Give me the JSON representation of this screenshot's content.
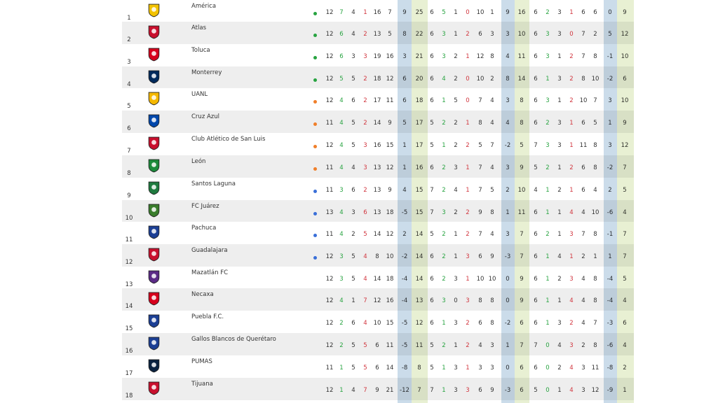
{
  "colors": {
    "dot_green": "#27a340",
    "dot_orange": "#f07f2a",
    "dot_blue": "#3a6fd8",
    "win": "#27a340",
    "loss": "#d1343d"
  },
  "rows": [
    {
      "pos": "1",
      "team": "América",
      "logo_color": "#f2c200",
      "dot": "green",
      "v": [
        "12",
        "7",
        "4",
        "1",
        "16",
        "7",
        "9",
        "25",
        "6",
        "5",
        "1",
        "0",
        "10",
        "1",
        "9",
        "16",
        "6",
        "2",
        "3",
        "1",
        "6",
        "6",
        "0",
        "9"
      ]
    },
    {
      "pos": "2",
      "team": "Atlas",
      "logo_color": "#c8102e",
      "dot": "green",
      "v": [
        "12",
        "6",
        "4",
        "2",
        "13",
        "5",
        "8",
        "22",
        "6",
        "3",
        "1",
        "2",
        "6",
        "3",
        "3",
        "10",
        "6",
        "3",
        "3",
        "0",
        "7",
        "2",
        "5",
        "12"
      ]
    },
    {
      "pos": "3",
      "team": "Toluca",
      "logo_color": "#d6001c",
      "dot": "green",
      "v": [
        "12",
        "6",
        "3",
        "3",
        "19",
        "16",
        "3",
        "21",
        "6",
        "3",
        "2",
        "1",
        "12",
        "8",
        "4",
        "11",
        "6",
        "3",
        "1",
        "2",
        "7",
        "8",
        "-1",
        "10"
      ]
    },
    {
      "pos": "4",
      "team": "Monterrey",
      "logo_color": "#002a5c",
      "dot": "green",
      "v": [
        "12",
        "5",
        "5",
        "2",
        "18",
        "12",
        "6",
        "20",
        "6",
        "4",
        "2",
        "0",
        "10",
        "2",
        "8",
        "14",
        "6",
        "1",
        "3",
        "2",
        "8",
        "10",
        "-2",
        "6"
      ]
    },
    {
      "pos": "5",
      "team": "UANL",
      "logo_color": "#f5b800",
      "dot": "orange",
      "v": [
        "12",
        "4",
        "6",
        "2",
        "17",
        "11",
        "6",
        "18",
        "6",
        "1",
        "5",
        "0",
        "7",
        "4",
        "3",
        "8",
        "6",
        "3",
        "1",
        "2",
        "10",
        "7",
        "3",
        "10"
      ]
    },
    {
      "pos": "6",
      "team": "Cruz Azul",
      "logo_color": "#0047ab",
      "dot": "orange",
      "v": [
        "11",
        "4",
        "5",
        "2",
        "14",
        "9",
        "5",
        "17",
        "5",
        "2",
        "2",
        "1",
        "8",
        "4",
        "4",
        "8",
        "6",
        "2",
        "3",
        "1",
        "6",
        "5",
        "1",
        "9"
      ]
    },
    {
      "pos": "7",
      "team": "Club Atlético de San Luis",
      "logo_color": "#c8102e",
      "dot": "orange",
      "v": [
        "12",
        "4",
        "5",
        "3",
        "16",
        "15",
        "1",
        "17",
        "5",
        "1",
        "2",
        "2",
        "5",
        "7",
        "-2",
        "5",
        "7",
        "3",
        "3",
        "1",
        "11",
        "8",
        "3",
        "12"
      ]
    },
    {
      "pos": "8",
      "team": "León",
      "logo_color": "#1b8a3a",
      "dot": "orange",
      "v": [
        "11",
        "4",
        "4",
        "3",
        "13",
        "12",
        "1",
        "16",
        "6",
        "2",
        "3",
        "1",
        "7",
        "4",
        "3",
        "9",
        "5",
        "2",
        "1",
        "2",
        "6",
        "8",
        "-2",
        "7"
      ]
    },
    {
      "pos": "9",
      "team": "Santos Laguna",
      "logo_color": "#1f7a3f",
      "dot": "blue",
      "v": [
        "11",
        "3",
        "6",
        "2",
        "13",
        "9",
        "4",
        "15",
        "7",
        "2",
        "4",
        "1",
        "7",
        "5",
        "2",
        "10",
        "4",
        "1",
        "2",
        "1",
        "6",
        "4",
        "2",
        "5"
      ]
    },
    {
      "pos": "10",
      "team": "FC Juárez",
      "logo_color": "#3a7d2c",
      "dot": "blue",
      "v": [
        "13",
        "4",
        "3",
        "6",
        "13",
        "18",
        "-5",
        "15",
        "7",
        "3",
        "2",
        "2",
        "9",
        "8",
        "1",
        "11",
        "6",
        "1",
        "1",
        "4",
        "4",
        "10",
        "-6",
        "4"
      ]
    },
    {
      "pos": "11",
      "team": "Pachuca",
      "logo_color": "#1c3f94",
      "dot": "blue",
      "v": [
        "11",
        "4",
        "2",
        "5",
        "14",
        "12",
        "2",
        "14",
        "5",
        "2",
        "1",
        "2",
        "7",
        "4",
        "3",
        "7",
        "6",
        "2",
        "1",
        "3",
        "7",
        "8",
        "-1",
        "7"
      ]
    },
    {
      "pos": "12",
      "team": "Guadalajara",
      "logo_color": "#c8102e",
      "dot": "blue",
      "v": [
        "12",
        "3",
        "5",
        "4",
        "8",
        "10",
        "-2",
        "14",
        "6",
        "2",
        "1",
        "3",
        "6",
        "9",
        "-3",
        "7",
        "6",
        "1",
        "4",
        "1",
        "2",
        "1",
        "1",
        "7"
      ]
    },
    {
      "pos": "13",
      "team": "Mazatlán FC",
      "logo_color": "#5b2a86",
      "dot": "",
      "v": [
        "12",
        "3",
        "5",
        "4",
        "14",
        "18",
        "-4",
        "14",
        "6",
        "2",
        "3",
        "1",
        "10",
        "10",
        "0",
        "9",
        "6",
        "1",
        "2",
        "3",
        "4",
        "8",
        "-4",
        "5"
      ]
    },
    {
      "pos": "14",
      "team": "Necaxa",
      "logo_color": "#d6001c",
      "dot": "",
      "v": [
        "12",
        "4",
        "1",
        "7",
        "12",
        "16",
        "-4",
        "13",
        "6",
        "3",
        "0",
        "3",
        "8",
        "8",
        "0",
        "9",
        "6",
        "1",
        "1",
        "4",
        "4",
        "8",
        "-4",
        "4"
      ]
    },
    {
      "pos": "15",
      "team": "Puebla F.C.",
      "logo_color": "#1c3f94",
      "dot": "",
      "v": [
        "12",
        "2",
        "6",
        "4",
        "10",
        "15",
        "-5",
        "12",
        "6",
        "1",
        "3",
        "2",
        "6",
        "8",
        "-2",
        "6",
        "6",
        "1",
        "3",
        "2",
        "4",
        "7",
        "-3",
        "6"
      ]
    },
    {
      "pos": "16",
      "team": "Gallos Blancos de Querétaro",
      "logo_color": "#1c3f94",
      "dot": "",
      "v": [
        "12",
        "2",
        "5",
        "5",
        "6",
        "11",
        "-5",
        "11",
        "5",
        "2",
        "1",
        "2",
        "4",
        "3",
        "1",
        "7",
        "7",
        "0",
        "4",
        "3",
        "2",
        "8",
        "-6",
        "4"
      ]
    },
    {
      "pos": "17",
      "team": "PUMAS",
      "logo_color": "#0a2240",
      "dot": "",
      "v": [
        "11",
        "1",
        "5",
        "5",
        "6",
        "14",
        "-8",
        "8",
        "5",
        "1",
        "3",
        "1",
        "3",
        "3",
        "0",
        "6",
        "6",
        "0",
        "2",
        "4",
        "3",
        "11",
        "-8",
        "2"
      ]
    },
    {
      "pos": "18",
      "team": "Tijuana",
      "logo_color": "#c8102e",
      "dot": "",
      "v": [
        "12",
        "1",
        "4",
        "7",
        "9",
        "21",
        "-12",
        "7",
        "7",
        "1",
        "3",
        "3",
        "6",
        "9",
        "-3",
        "6",
        "5",
        "0",
        "1",
        "4",
        "3",
        "12",
        "-9",
        "1"
      ]
    }
  ]
}
